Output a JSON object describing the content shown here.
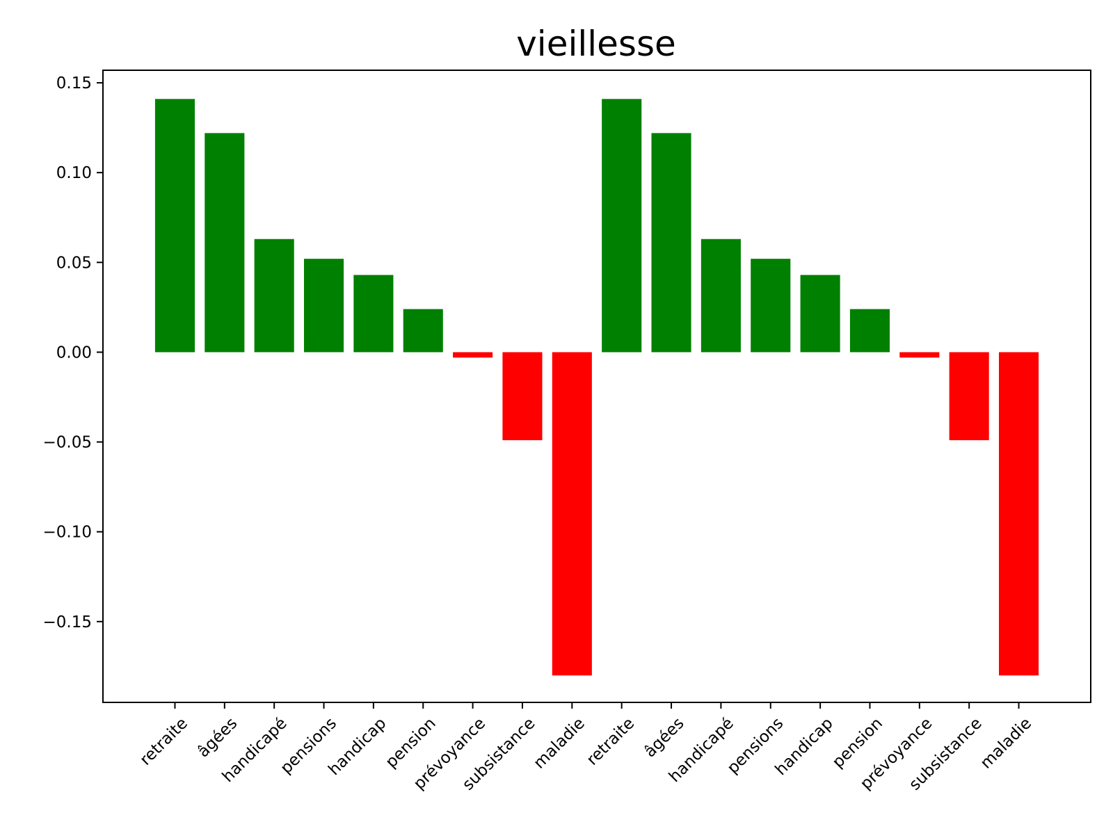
{
  "chart_data": {
    "type": "bar",
    "title": "vieillesse",
    "xlabel": "",
    "ylabel": "",
    "categories": [
      "retraite",
      "âgées",
      "handicapé",
      "pensions",
      "handicap",
      "pension",
      "prévoyance",
      "subsistance",
      "maladie",
      "retraite",
      "âgées",
      "handicapé",
      "pensions",
      "handicap",
      "pension",
      "prévoyance",
      "subsistance",
      "maladie"
    ],
    "values": [
      0.141,
      0.122,
      0.063,
      0.052,
      0.043,
      0.024,
      -0.003,
      -0.049,
      -0.18,
      0.141,
      0.122,
      0.063,
      0.052,
      0.043,
      0.024,
      -0.003,
      -0.049,
      -0.18
    ],
    "ylim": [
      -0.195,
      0.157
    ],
    "yticks": [
      0.15,
      0.1,
      0.05,
      0.0,
      -0.05,
      -0.1,
      -0.15
    ],
    "ytick_labels": [
      "0.15",
      "0.10",
      "0.05",
      "0.00",
      "−0.05",
      "−0.10",
      "−0.15"
    ],
    "grid": false,
    "colors": {
      "positive": "#008000",
      "negative": "#ff0000",
      "axis": "#000000"
    }
  }
}
